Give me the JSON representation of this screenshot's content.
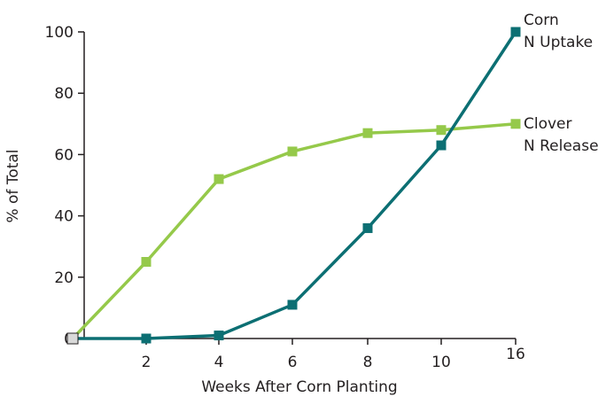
{
  "chart_data": {
    "type": "line",
    "x": [
      "0",
      "2",
      "4",
      "6",
      "8",
      "10",
      "16"
    ],
    "series": [
      {
        "name": "Clover N Release",
        "label_lines": [
          "Clover",
          "N Release"
        ],
        "color": "#95c94a",
        "values": [
          0,
          25,
          52,
          61,
          67,
          68,
          70
        ]
      },
      {
        "name": "Corn N Uptake",
        "label_lines": [
          "Corn",
          "N Uptake"
        ],
        "color": "#0c6f73",
        "values": [
          0,
          0,
          1,
          11,
          36,
          63,
          100
        ]
      }
    ],
    "x_tick_labels": [
      "2",
      "4",
      "6",
      "8",
      "10",
      "16"
    ],
    "y_ticks": [
      0,
      20,
      40,
      60,
      80,
      100
    ],
    "ylim": [
      0,
      100
    ],
    "xlabel": "Weeks After Corn Planting",
    "ylabel": "% of Total",
    "grid": false,
    "colors": {
      "axis": "#231f20",
      "origin_marker_fill": "#d9d9d9",
      "origin_marker_stroke": "#231f20"
    }
  }
}
